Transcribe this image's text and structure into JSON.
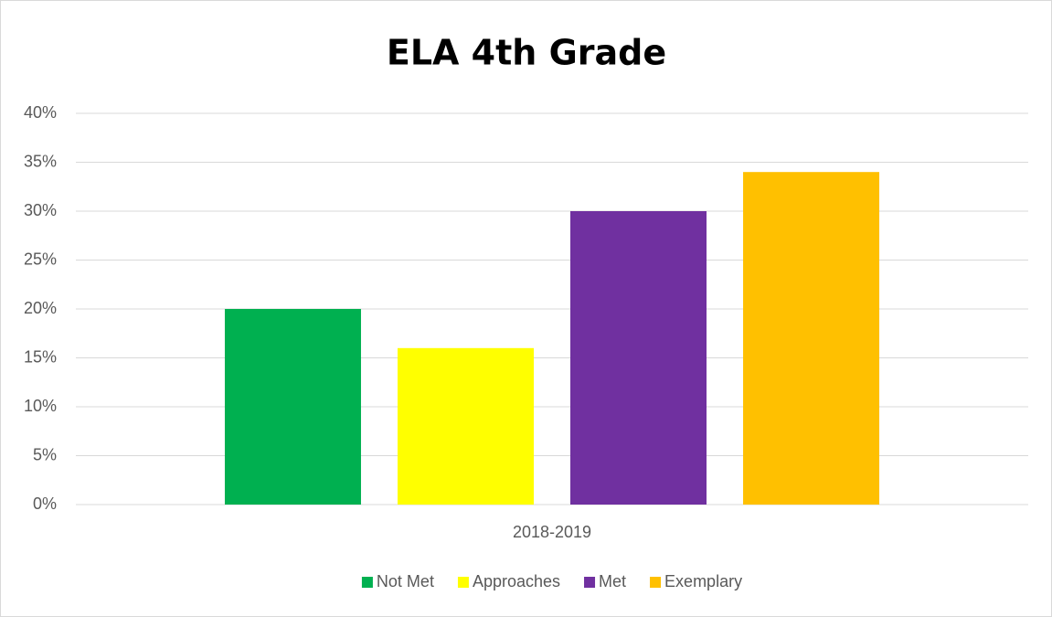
{
  "chart_data": {
    "type": "bar",
    "title": "ELA 4th Grade",
    "categories": [
      "2018-2019"
    ],
    "series": [
      {
        "name": "Not Met",
        "color": "#00b050",
        "values": [
          20
        ]
      },
      {
        "name": "Approaches",
        "color": "#ffff00",
        "values": [
          16
        ]
      },
      {
        "name": "Met",
        "color": "#7030a0",
        "values": [
          30
        ]
      },
      {
        "name": "Exemplary",
        "color": "#ffc000",
        "values": [
          34
        ]
      }
    ],
    "ylim": [
      0,
      40
    ],
    "yticks": [
      {
        "value": 0,
        "label": "0%"
      },
      {
        "value": 5,
        "label": "5%"
      },
      {
        "value": 10,
        "label": "10%"
      },
      {
        "value": 15,
        "label": "15%"
      },
      {
        "value": 20,
        "label": "20%"
      },
      {
        "value": 25,
        "label": "25%"
      },
      {
        "value": 30,
        "label": "30%"
      },
      {
        "value": 35,
        "label": "35%"
      },
      {
        "value": 40,
        "label": "40%"
      }
    ],
    "grid": true,
    "legend": "bottom"
  }
}
